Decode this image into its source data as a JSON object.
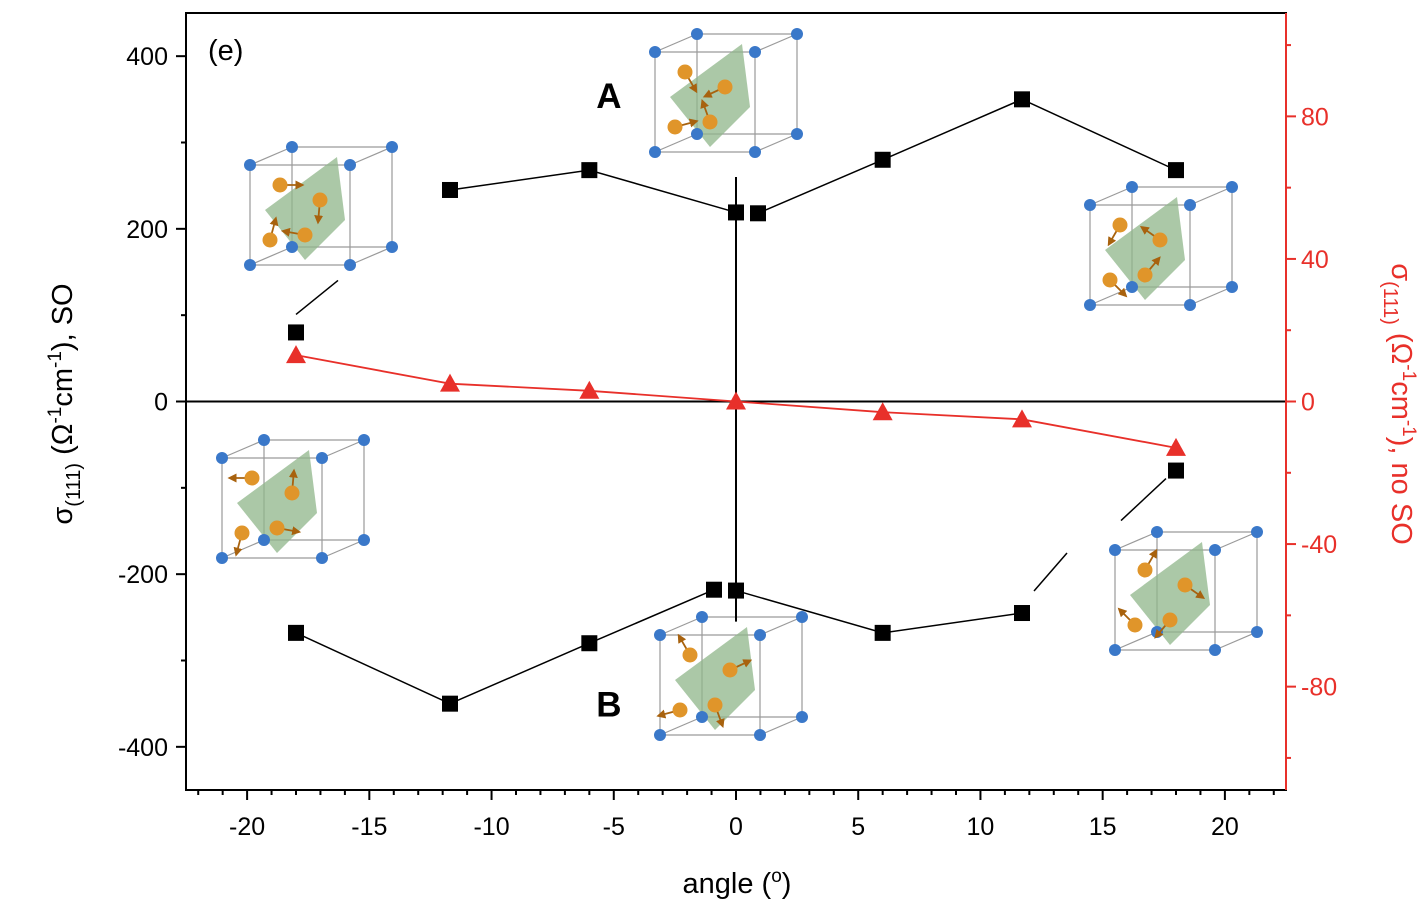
{
  "chart_data": {
    "type": "scatter",
    "panel_label": "(e)",
    "xlabel": "angle (",
    "xlabel_sup": "o",
    "xlabel_end": ")",
    "ylabel_left": {
      "sigma": "σ",
      "sub": "(111)",
      "p1": " (Ω",
      "sup1": "-1",
      "p2": "cm",
      "sup2": "-1",
      "p3": "), SO"
    },
    "ylabel_right": {
      "sigma": "σ",
      "sub": "(111)",
      "p1": " (Ω",
      "sup1": "-1",
      "p2": "cm",
      "sup2": "-1",
      "p3": "), no SO"
    },
    "xlim": [
      -22.5,
      22.5
    ],
    "ylim_left": [
      -450,
      450
    ],
    "ylim_right": [
      -109,
      109
    ],
    "x_ticks": [
      -20,
      -15,
      -10,
      -5,
      0,
      5,
      10,
      15,
      20
    ],
    "y_ticks_left": [
      -400,
      -200,
      0,
      200,
      400
    ],
    "y_ticks_right": [
      -80,
      -40,
      0,
      40,
      80
    ],
    "grid": false,
    "colors": {
      "black_series": "#000000",
      "red_series": "#e8302a",
      "right_axis": "#e8302a"
    },
    "labels": [
      {
        "text": "A",
        "x": -5.2,
        "y": 340
      },
      {
        "text": "B",
        "x": -5.2,
        "y": -365
      }
    ],
    "series": [
      {
        "axis": "left",
        "marker": "square",
        "color": "#000000",
        "line_type": "branch_A",
        "points": [
          [
            -18,
            80
          ],
          [
            -11.7,
            245
          ],
          [
            -6,
            268
          ],
          [
            0,
            219
          ],
          [
            0.9,
            218
          ],
          [
            6,
            280
          ],
          [
            11.7,
            350
          ],
          [
            18,
            268
          ]
        ]
      },
      {
        "axis": "left",
        "marker": "square",
        "color": "#000000",
        "line_type": "branch_B",
        "points": [
          [
            -18,
            -268
          ],
          [
            -11.7,
            -350
          ],
          [
            -6,
            -280
          ],
          [
            -0.9,
            -218
          ],
          [
            0,
            -219
          ],
          [
            6,
            -268
          ],
          [
            11.7,
            -245
          ],
          [
            18,
            -80
          ]
        ]
      },
      {
        "axis": "right",
        "marker": "triangle",
        "color": "#e8302a",
        "line_type": "line",
        "points": [
          [
            -18,
            13
          ],
          [
            -11.7,
            5
          ],
          [
            -6,
            3
          ],
          [
            0,
            0
          ],
          [
            6,
            -3
          ],
          [
            11.7,
            -5
          ],
          [
            18,
            -13
          ]
        ]
      }
    ]
  }
}
